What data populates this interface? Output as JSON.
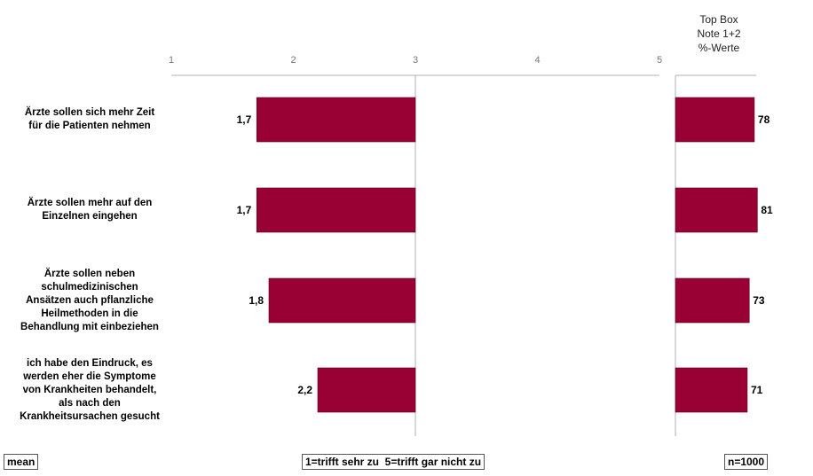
{
  "chart_data": {
    "type": "bar",
    "orientation": "horizontal",
    "categories": [
      "Ärzte sollen sich mehr Zeit für die Patienten nehmen",
      "Ärzte sollen mehr auf den Einzelnen eingehen",
      "Ärzte sollen neben schulmedizinischen Ansätzen auch pflanzliche Heilmethoden in die Behandlung mit einbeziehen",
      "ich habe den Eindruck, es werden eher die Symptome von Krankheiten behandelt, als nach den Krankheitsursachen gesucht"
    ],
    "category_lines": [
      [
        "Ärzte sollen sich mehr Zeit",
        "für die Patienten nehmen"
      ],
      [
        "Ärzte sollen mehr auf den",
        "Einzelnen eingehen"
      ],
      [
        "Ärzte sollen neben",
        "schulmedizinischen",
        "Ansätzen auch pflanzliche",
        "Heilmethoden in die",
        "Behandlung mit einbeziehen"
      ],
      [
        "ich habe den Eindruck, es",
        "werden eher die Symptome",
        "von Krankheiten behandelt,",
        "als nach den",
        "Krankheitsursachen gesucht"
      ]
    ],
    "series": [
      {
        "values": [
          1.7,
          1.7,
          1.8,
          2.2
        ],
        "labels": [
          "1,7",
          "1,7",
          "1,8",
          "2,2"
        ]
      },
      {
        "values": [
          78,
          81,
          73,
          71
        ],
        "labels": [
          "78",
          "81",
          "73",
          "71"
        ]
      }
    ],
    "xlim": [
      1,
      5
    ],
    "xticks": [
      "1",
      "2",
      "3",
      "4",
      "5"
    ],
    "reference_value": 3,
    "topbox_header": [
      "Top Box",
      "Note 1+2",
      "%-Werte"
    ],
    "bar_color": "#990033",
    "grid": false
  },
  "footer": {
    "left": "mean",
    "center": "1=trifft sehr zu  5=trifft gar nicht zu",
    "right": "n=1000"
  }
}
